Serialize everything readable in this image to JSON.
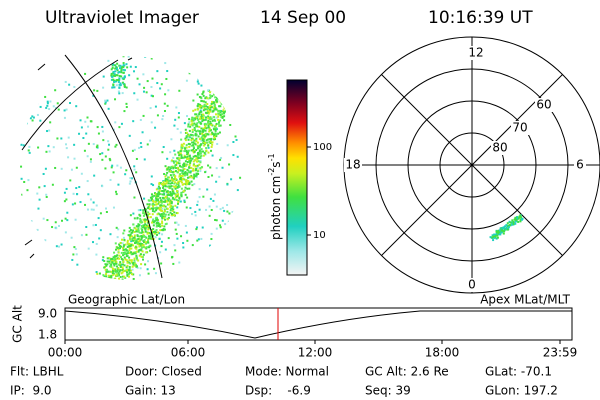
{
  "header": {
    "title": "Ultraviolet Imager",
    "date": "14 Sep 00",
    "time": "10:16:39 UT"
  },
  "colorbar": {
    "unit": "photon cm",
    "exp1": "-2",
    "unit2": "s",
    "exp2": "-1",
    "ticks": [
      "100",
      "10"
    ]
  },
  "polar": {
    "labels": {
      "top": "12",
      "left": "18",
      "right": "6",
      "bottom": "0"
    },
    "rings": [
      "60",
      "70",
      "80"
    ]
  },
  "captions": {
    "left": "Geographic Lat/Lon",
    "right": "Apex MLat/MLT"
  },
  "altitude_plot": {
    "ylabel": "GC Alt",
    "yticks": [
      "9.0",
      "1.8"
    ],
    "xticks": [
      "00:00",
      "06:00",
      "12:00",
      "18:00",
      "23:59"
    ]
  },
  "info": {
    "rows": [
      [
        "Flt: LBHL",
        "Door: Closed",
        "Mode: Normal",
        "GC Alt: 2.6 Re",
        "GLat: -70.1"
      ],
      [
        "IP:  9.0",
        "Gain: 13",
        "Dsp:    -6.9",
        "Seq: 39",
        "GLon: 197.2"
      ]
    ]
  }
}
